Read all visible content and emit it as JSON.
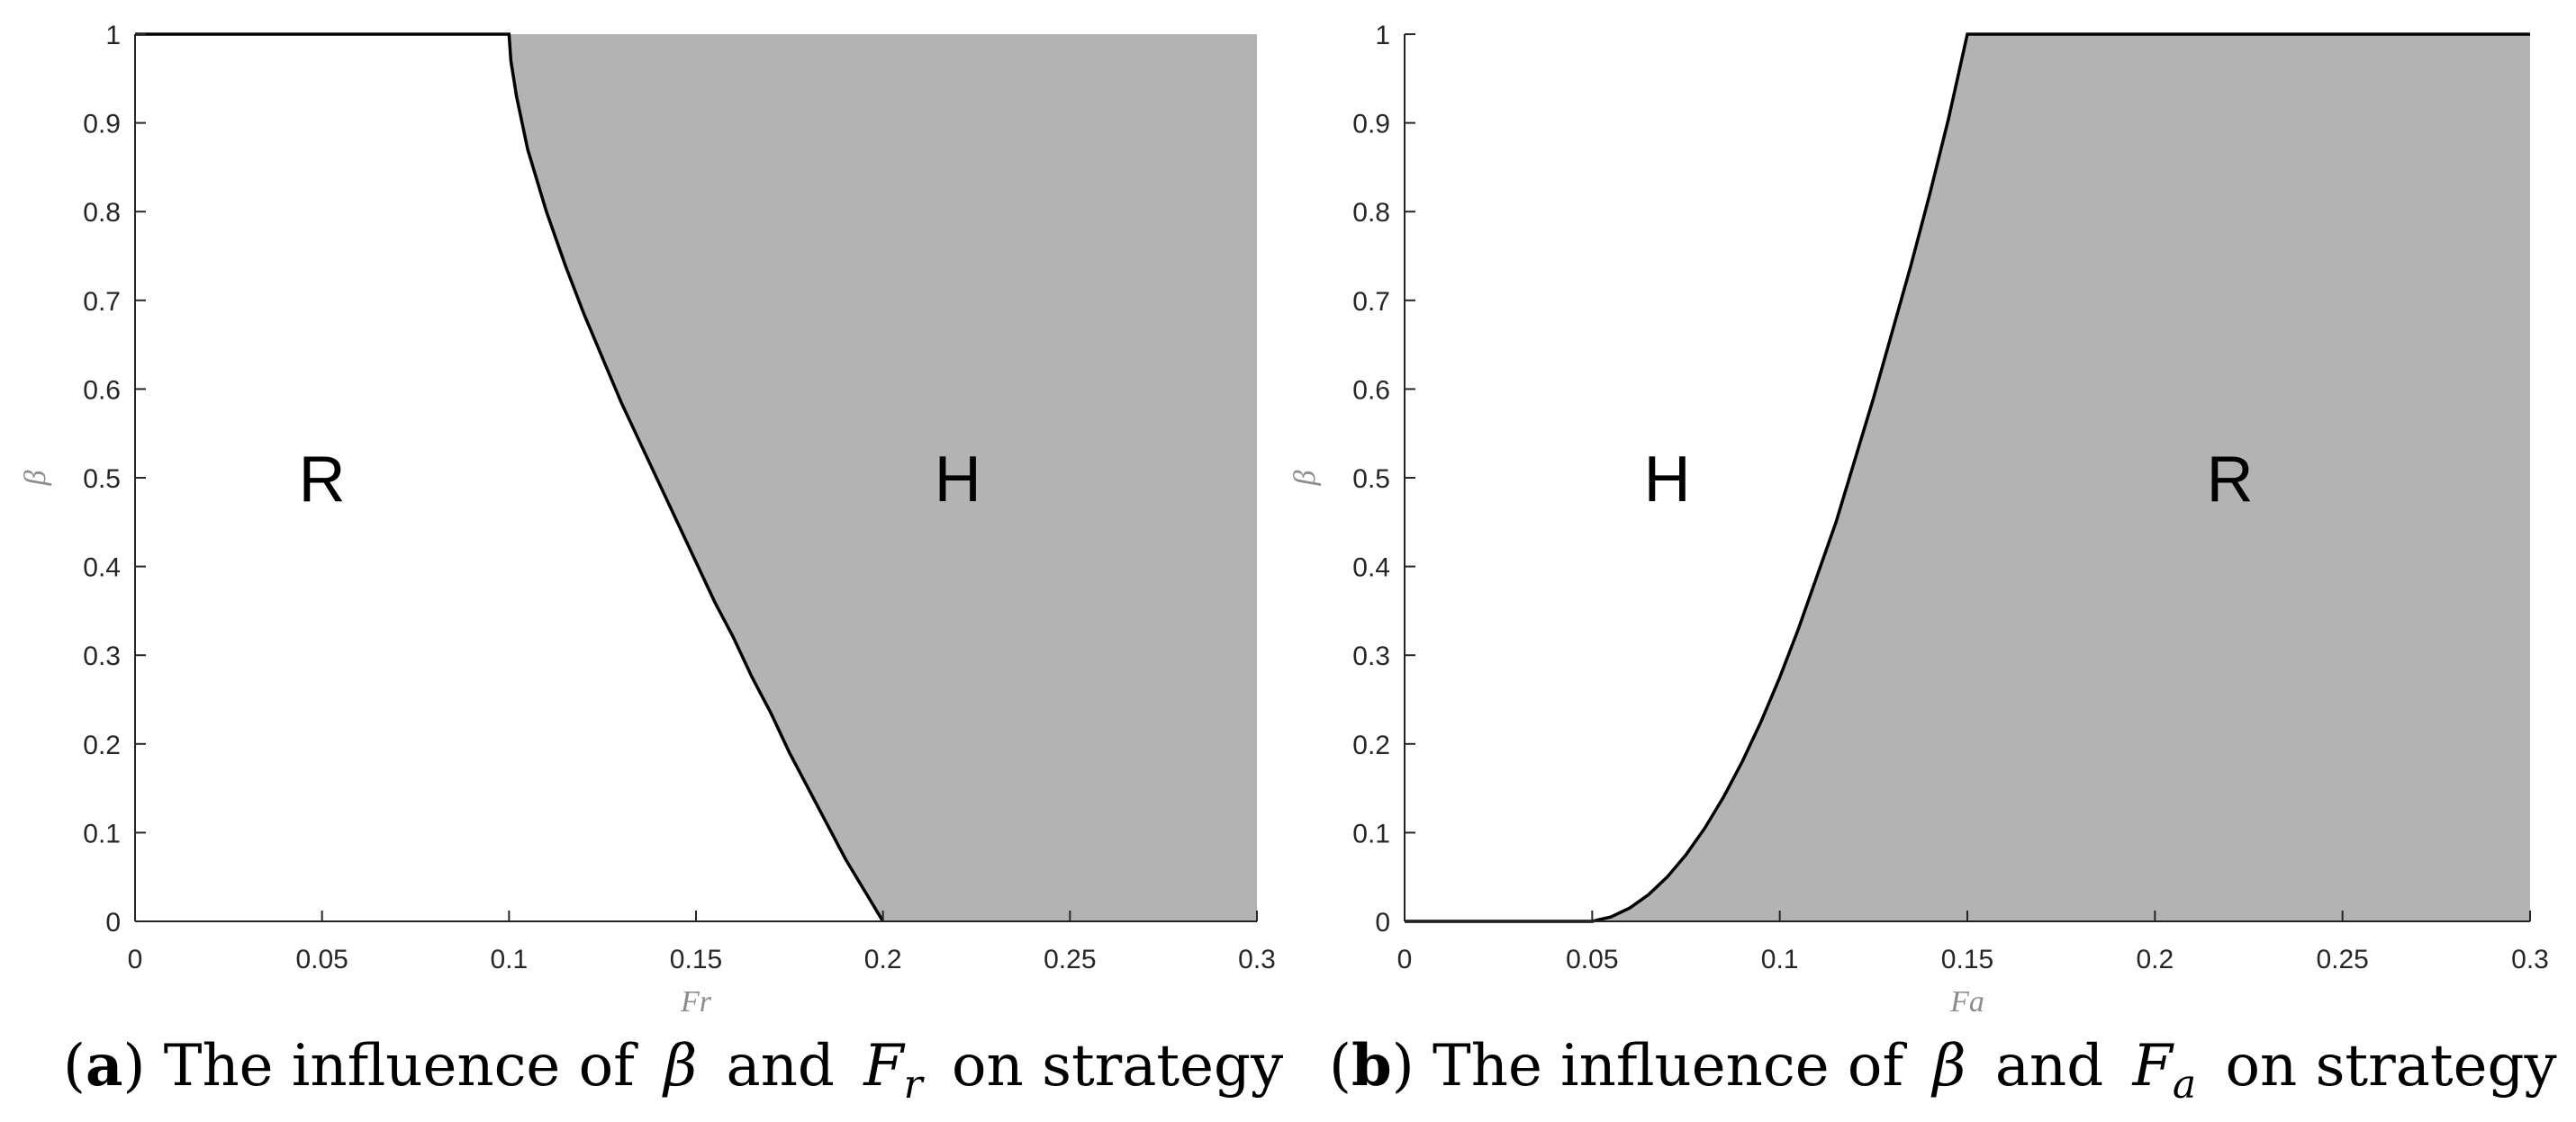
{
  "chart_data": [
    {
      "type": "area",
      "xlabel": "Fr",
      "ylabel": "β",
      "xlim": [
        0,
        0.3
      ],
      "ylim": [
        0,
        1
      ],
      "xticks": [
        "0",
        "0.05",
        "0.1",
        "0.15",
        "0.2",
        "0.25",
        "0.3"
      ],
      "yticks": [
        "0",
        "0.1",
        "0.2",
        "0.3",
        "0.4",
        "0.5",
        "0.6",
        "0.7",
        "0.8",
        "0.9",
        "1"
      ],
      "grid": false,
      "region_left_label": "R",
      "region_right_label": "H",
      "left_region_color": "#ffffff",
      "right_region_color": "#b3b3b3",
      "boundary": {
        "x": [
          0.1,
          0.1005,
          0.102,
          0.105,
          0.11,
          0.115,
          0.12,
          0.125,
          0.13,
          0.135,
          0.14,
          0.145,
          0.15,
          0.155,
          0.16,
          0.165,
          0.17,
          0.175,
          0.18,
          0.185,
          0.19,
          0.195,
          0.2
        ],
        "y": [
          1.0,
          0.97,
          0.93,
          0.87,
          0.8,
          0.74,
          0.685,
          0.635,
          0.585,
          0.54,
          0.495,
          0.45,
          0.405,
          0.36,
          0.32,
          0.275,
          0.235,
          0.19,
          0.15,
          0.11,
          0.07,
          0.035,
          0.0
        ]
      },
      "caption": {
        "prefix": "(",
        "letter": "a",
        "suffix": ") The influence of ",
        "sym1": "β",
        "mid": " and ",
        "sym2": "F",
        "sym2_sub": "r",
        "end": " on strategy"
      }
    },
    {
      "type": "area",
      "xlabel": "Fa",
      "ylabel": "β",
      "xlim": [
        0,
        0.3
      ],
      "ylim": [
        0,
        1
      ],
      "xticks": [
        "0",
        "0.05",
        "0.1",
        "0.15",
        "0.2",
        "0.25",
        "0.3"
      ],
      "yticks": [
        "0",
        "0.1",
        "0.2",
        "0.3",
        "0.4",
        "0.5",
        "0.6",
        "0.7",
        "0.8",
        "0.9",
        "1"
      ],
      "grid": false,
      "region_left_label": "H",
      "region_right_label": "R",
      "left_region_color": "#ffffff",
      "right_region_color": "#b3b3b3",
      "boundary": {
        "x": [
          0.0,
          0.05,
          0.055,
          0.06,
          0.065,
          0.07,
          0.075,
          0.08,
          0.085,
          0.09,
          0.095,
          0.1,
          0.105,
          0.11,
          0.115,
          0.12,
          0.125,
          0.13,
          0.135,
          0.14,
          0.145,
          0.15
        ],
        "y": [
          0.0,
          0.0,
          0.005,
          0.015,
          0.03,
          0.05,
          0.075,
          0.105,
          0.14,
          0.18,
          0.225,
          0.275,
          0.33,
          0.39,
          0.45,
          0.52,
          0.59,
          0.665,
          0.74,
          0.82,
          0.905,
          1.0
        ]
      },
      "caption": {
        "prefix": "(",
        "letter": "b",
        "suffix": ") The influence of ",
        "sym1": "β",
        "mid": " and ",
        "sym2": "F",
        "sym2_sub": "a",
        "end": " on strategy"
      }
    }
  ]
}
